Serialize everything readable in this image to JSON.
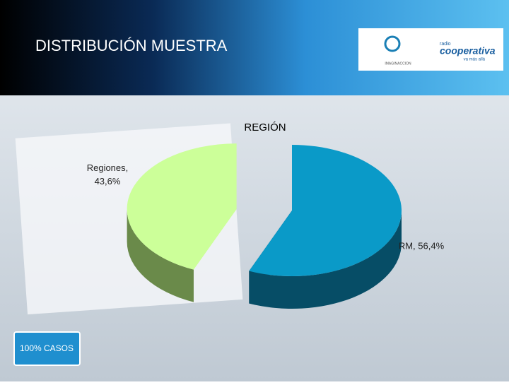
{
  "header": {
    "title": "DISTRIBUCIÓN MUESTRA",
    "logo_left": "IMAGINACCION",
    "logo_right": "cooperativa",
    "logo_right_top": "radio",
    "logo_right_sub": "va más allá"
  },
  "note": "100% CASOS",
  "chart_data": {
    "type": "pie3d",
    "title": "REGIÓN",
    "values": [
      56.4,
      43.6
    ],
    "value_labels": [
      "RM, 56,4%",
      "Regiones, 43,6%"
    ],
    "colors": [
      "#0a9ac8",
      "#ccff99"
    ],
    "side_colors": [
      "#064d66",
      "#6a8a4a"
    ],
    "exploded": [
      false,
      true
    ]
  }
}
